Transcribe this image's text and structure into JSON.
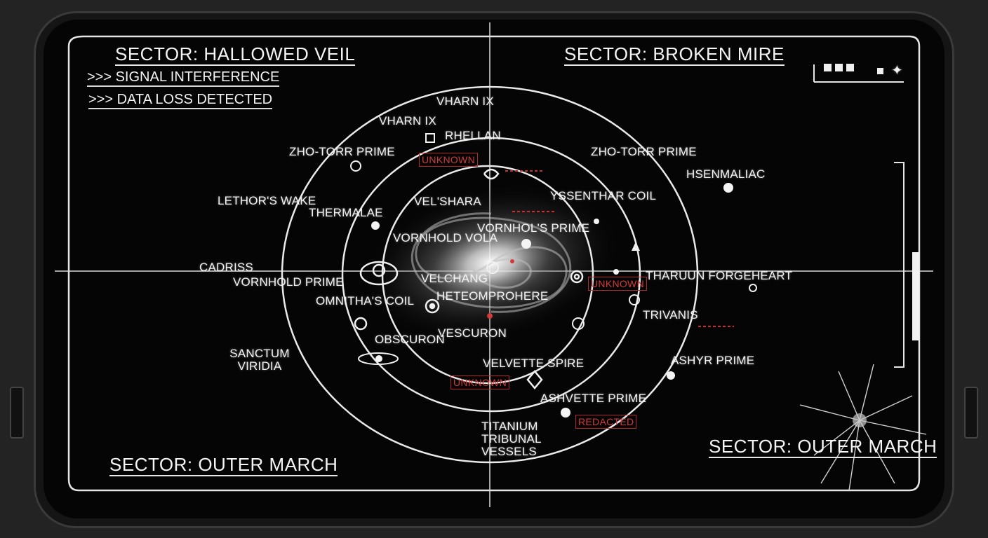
{
  "sectors": {
    "top_left": "SECTOR: HALLOWED VEIL",
    "top_right": "SECTOR: BROKEN MIRE",
    "bottom_left": "SECTOR: OUTER MARCH",
    "bottom_right": "SECTOR: OUTER MARCH"
  },
  "alerts": [
    ">>> SIGNAL INTERFERENCE",
    ">>> DATA LOSS DETECTED"
  ],
  "locations": {
    "vharn_ix_top": "VHARN IX",
    "vharn_ix": "VHARN IX",
    "rhellan": "RHELLAN",
    "zho_torr_left": "ZHO-TORR PRIME",
    "zho_torr_right": "ZHO-TORR PRIME",
    "hsenmaliac": "HSENMALIAC",
    "lethors_wake": "LETHOR'S WAKE",
    "thermalae": "THERMALAE",
    "velshara": "VEL'SHARA",
    "ysenthar_coil": "YSSENTHAR COIL",
    "vornhold_vola": "VORNHOLD VOLA",
    "vornhols_prime": "VORNHOL'S PRIME",
    "cadriss": "CADRISS",
    "vornhold_prime": "VORNHOLD PRIME",
    "velchang": "VELCHANG",
    "heteomprohere": "HETEOMPROHERE",
    "thaduun_forgeheart": "THARUUN FORGEHEART",
    "omnithas_coil": "OMNITHA'S COIL",
    "trivanis": "TRIVANIS",
    "vescuron": "VESCURON",
    "obscuron": "OBSCURON",
    "sanctum_viridia": "SANCTUM VIRIDIA",
    "velvette_spire": "VELVETTE SPIRE",
    "ashyr_prime": "ASHYR PRIME",
    "ashvette_prime": "ASHVETTE PRIME",
    "titanium_tribunal": "TITANIUM TRIBUNAL VESSELS"
  },
  "tags": {
    "unknown_top": "UNKNOWN",
    "unknown_right": "UNKNOWN",
    "unknown_bottom": "UNKNOWN",
    "redacted": "REDACTED"
  },
  "colors": {
    "alert_red": "#d23a3a",
    "hud_white": "#f2f2f2",
    "screen_black": "#050505"
  }
}
